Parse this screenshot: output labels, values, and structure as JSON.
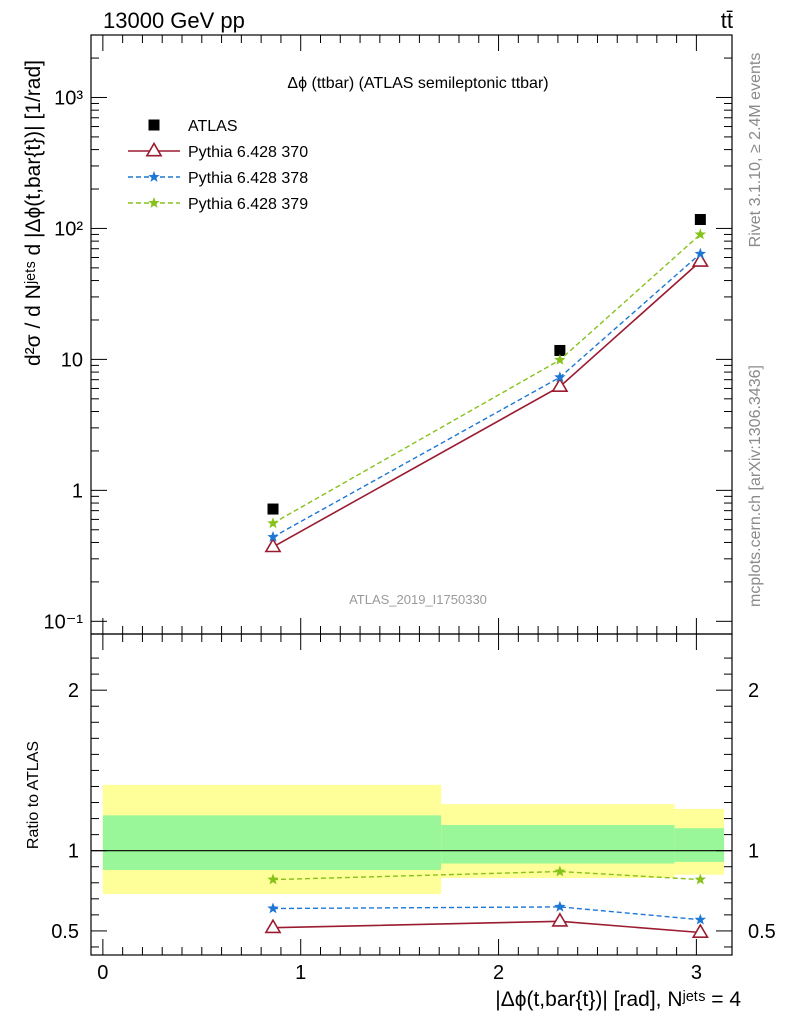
{
  "header": {
    "left": "13000 GeV pp",
    "right": "tt̄"
  },
  "side_labels": {
    "rivet": "Rivet 3.1.10, ≥ 2.4M events",
    "mcplots": "mcplots.cern.ch [arXiv:1306.3436]"
  },
  "chart_data": [
    {
      "type": "scatter",
      "title": "Δϕ (ttbar) (ATLAS semileptonic ttbar)",
      "ylabel": "d²σ / d Nʲᵉᵗˢ d |Δϕ(t,bar{t})| [1/rad]",
      "yscale": "log",
      "ylim": [
        0.08,
        3000
      ],
      "yticks": [
        "10⁻¹",
        "1",
        "10",
        "10²",
        "10³"
      ],
      "watermark": "ATLAS_2019_I1750330",
      "legend_position": "top-left",
      "x": [
        0.86,
        2.31,
        3.02
      ],
      "series": [
        {
          "name": "ATLAS",
          "style": "marker",
          "color": "#000000",
          "values": [
            0.72,
            11.7,
            117
          ]
        },
        {
          "name": "Pythia 6.428 370",
          "style": "solid-triangle",
          "color": "#9b1b30",
          "values": [
            0.37,
            6.2,
            56
          ]
        },
        {
          "name": "Pythia 6.428 378",
          "style": "dashed-star",
          "color": "#1f77d4",
          "values": [
            0.44,
            7.3,
            64
          ]
        },
        {
          "name": "Pythia 6.428 379",
          "style": "dashed-star",
          "color": "#86c21a",
          "values": [
            0.56,
            9.9,
            90
          ]
        }
      ]
    },
    {
      "type": "line",
      "ylabel": "Ratio to ATLAS",
      "xlabel": "|Δϕ(t,bar{t})| [rad], Nʲᵉᵗˢ = 4",
      "xlim": [
        -0.06,
        3.18
      ],
      "ylim": [
        0.35,
        2.35
      ],
      "xticks": [
        0,
        1,
        2,
        3
      ],
      "yticks": [
        0.5,
        1,
        2
      ],
      "reference_line": 1,
      "bands": [
        {
          "x_from": 0.0,
          "x_to": 1.71,
          "outer": [
            0.73,
            1.41
          ],
          "inner": [
            0.88,
            1.22
          ]
        },
        {
          "x_from": 1.71,
          "x_to": 2.89,
          "outer": [
            0.83,
            1.29
          ],
          "inner": [
            0.92,
            1.16
          ]
        },
        {
          "x_from": 2.89,
          "x_to": 3.14,
          "outer": [
            0.85,
            1.26
          ],
          "inner": [
            0.93,
            1.14
          ]
        }
      ],
      "band_colors": {
        "outer": "#ffff99",
        "inner": "#99f799"
      },
      "x": [
        0.86,
        2.31,
        3.02
      ],
      "series": [
        {
          "name": "Pythia 6.428 370",
          "style": "solid-triangle",
          "color": "#9b1b30",
          "values": [
            0.52,
            0.56,
            0.49
          ]
        },
        {
          "name": "Pythia 6.428 378",
          "style": "dashed-star",
          "color": "#1f77d4",
          "values": [
            0.64,
            0.65,
            0.57
          ]
        },
        {
          "name": "Pythia 6.428 379",
          "style": "dashed-star",
          "color": "#86c21a",
          "values": [
            0.82,
            0.87,
            0.82
          ]
        }
      ]
    }
  ]
}
